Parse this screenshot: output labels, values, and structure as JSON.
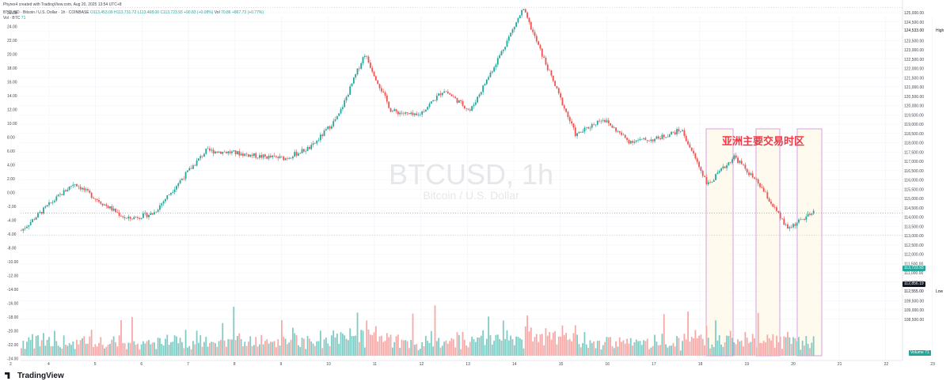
{
  "header": {
    "created_by": "Phyrex4 created with TradingView.com, Aug 20, 2025 13:54 UTC+8",
    "symbol_line": "BTCUSD · Bitcoin / U.S. Dollar · 1h · COINBASE",
    "ohlc": "O113,453.09 H113,731.72 L113,468.00 C113,723.93 +90.83 (+0.08%)",
    "vol_label": "Vol",
    "vol_value": "70.86 +867.73 (+0.77%)",
    "sub_line": "Vol · BTC",
    "sub_value": "71"
  },
  "watermark": {
    "symbol": "BTCUSD, 1h",
    "name": "Bitcoin / U.S. Dollar"
  },
  "annotation": {
    "text": "亚洲主要交易时区",
    "color": "#f23645"
  },
  "price_tags": {
    "high_label": "High",
    "high_value": "124,533.00",
    "current_value": "113,723.93",
    "low_label": "Low",
    "low_value": "112,555.00",
    "close_value": "112,856.19",
    "volume_label": "Volume",
    "volume_value": "71"
  },
  "branding": {
    "logo_text": "TradingView"
  },
  "colors": {
    "up": "#26a69a",
    "down": "#ef5350",
    "box": "#d8a0e6",
    "grid": "#f0f3fa"
  },
  "chart_data": {
    "type": "candlestick",
    "interval": "1h",
    "right_axis": {
      "ticks": [
        "125,000.00",
        "124,500.00",
        "124,000.00",
        "123,500.00",
        "123,000.00",
        "122,500.00",
        "122,000.00",
        "121,500.00",
        "121,000.00",
        "120,500.00",
        "120,000.00",
        "119,500.00",
        "119,000.00",
        "118,500.00",
        "118,000.00",
        "117,500.00",
        "117,000.00",
        "116,500.00",
        "116,000.00",
        "115,500.00",
        "115,000.00",
        "114,500.00",
        "114,000.00",
        "113,500.00",
        "113,000.00",
        "112,500.00",
        "112,000.00",
        "111,500.00",
        "111,000.00",
        "110,500.00",
        "110,000.00",
        "109,500.00",
        "109,000.00",
        "108,500.00"
      ],
      "range": [
        108280,
        125250
      ]
    },
    "left_axis": {
      "ticks": [
        "26.00",
        "24.00",
        "22.00",
        "20.00",
        "18.00",
        "16.00",
        "14.00",
        "12.00",
        "10.00",
        "8.00",
        "6.00",
        "4.00",
        "2.00",
        "0.00",
        "-2.00",
        "-4.00",
        "-6.00",
        "-8.00",
        "-10.00",
        "-12.00",
        "-14.00",
        "-16.00",
        "-18.00",
        "-20.00",
        "-22.00",
        "-24.00"
      ]
    },
    "x_ticks": [
      "2",
      "4",
      "5",
      "6",
      "7",
      "8",
      "9",
      "10",
      "11",
      "12",
      "13",
      "14",
      "15",
      "16",
      "17",
      "18",
      "19",
      "20",
      "21",
      "22",
      "23"
    ],
    "waypoints": [
      [
        "Aug 2",
        112800
      ],
      [
        "Aug 3",
        114100
      ],
      [
        "Aug 4",
        115300
      ],
      [
        "Aug 5",
        114300
      ],
      [
        "Aug 6",
        113400
      ],
      [
        "Aug 6",
        113700
      ],
      [
        "Aug 7",
        115400
      ],
      [
        "Aug 8",
        117000
      ],
      [
        "Aug 8",
        116900
      ],
      [
        "Aug 9",
        116700
      ],
      [
        "Aug 10",
        116600
      ],
      [
        "Aug 10",
        117200
      ],
      [
        "Aug 11",
        118800
      ],
      [
        "Aug 11",
        122100
      ],
      [
        "Aug 12",
        119100
      ],
      [
        "Aug 12",
        118800
      ],
      [
        "Aug 13",
        120200
      ],
      [
        "Aug 13",
        119100
      ],
      [
        "Aug 14",
        121700
      ],
      [
        "Aug 14",
        124450
      ],
      [
        "Aug 14",
        121100
      ],
      [
        "Aug 15",
        117800
      ],
      [
        "Aug 15",
        118700
      ],
      [
        "Aug 16",
        117500
      ],
      [
        "Aug 17",
        117600
      ],
      [
        "Aug 18",
        118100
      ],
      [
        "Aug 18",
        115200
      ],
      [
        "Aug 19",
        116700
      ],
      [
        "Aug 19",
        115100
      ],
      [
        "Aug 20",
        112900
      ],
      [
        "Aug 20",
        113724
      ]
    ],
    "annotation_boxes": [
      "Aug 18 Asia session",
      "Aug 19 Asia session",
      "Aug 20 Asia session"
    ]
  }
}
